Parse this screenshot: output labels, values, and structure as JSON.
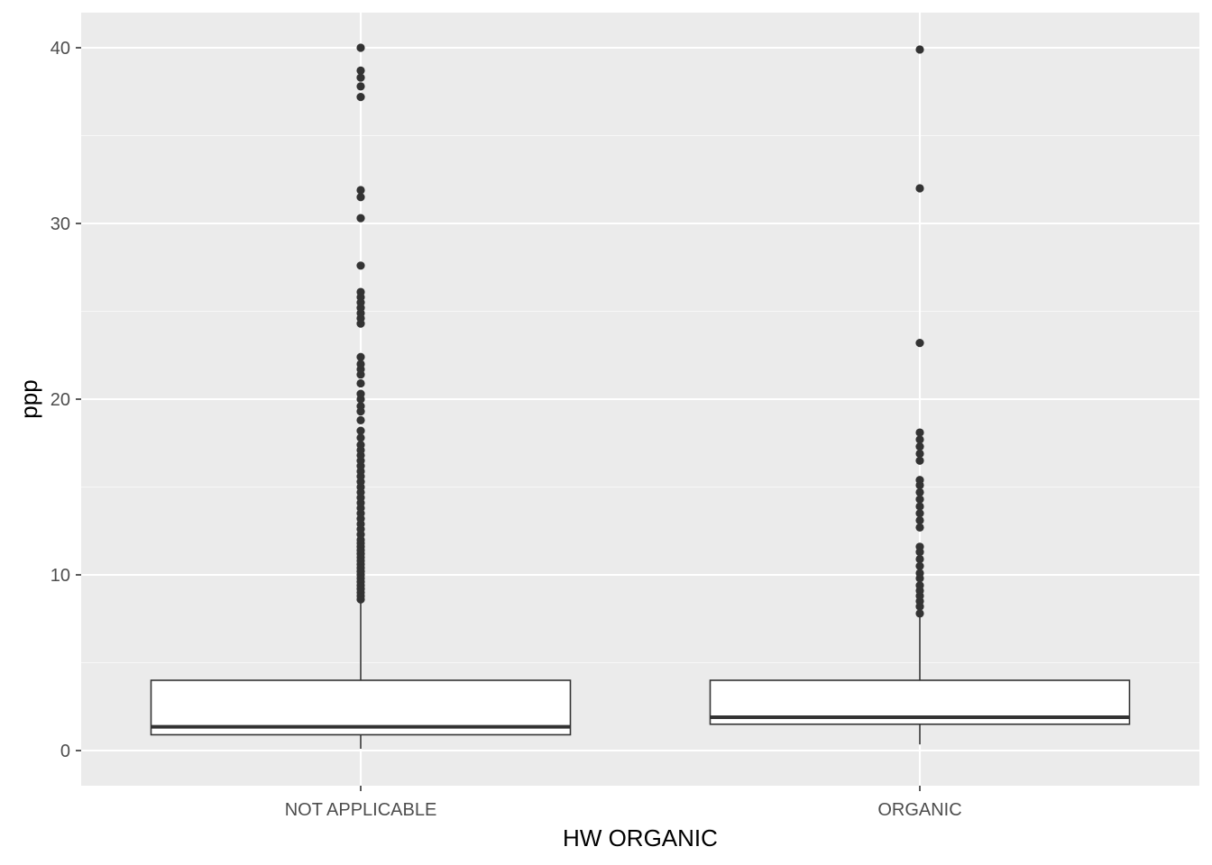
{
  "chart_data": {
    "type": "box",
    "title": "",
    "xlabel": "HW ORGANIC",
    "ylabel": "ppp",
    "ylim": [
      -2,
      42
    ],
    "y_ticks": [
      0,
      10,
      20,
      30,
      40
    ],
    "y_tick_labels": [
      "0",
      "10",
      "20",
      "30",
      "40"
    ],
    "grid": true,
    "legend": "none",
    "categories": [
      "NOT APPLICABLE",
      "ORGANIC"
    ],
    "boxes": [
      {
        "category": "NOT APPLICABLE",
        "whisker_low": 0.1,
        "q1": 0.9,
        "median": 1.35,
        "q3": 4.0,
        "whisker_high": 8.5,
        "outliers": [
          8.6,
          8.8,
          9.0,
          9.2,
          9.4,
          9.6,
          9.8,
          10.0,
          10.2,
          10.4,
          10.6,
          10.8,
          11.0,
          11.2,
          11.4,
          11.6,
          11.8,
          12.0,
          12.3,
          12.6,
          12.9,
          13.2,
          13.5,
          13.8,
          14.1,
          14.4,
          14.7,
          15.0,
          15.3,
          15.6,
          15.9,
          16.2,
          16.5,
          16.8,
          17.1,
          17.4,
          17.8,
          18.2,
          18.8,
          19.3,
          19.6,
          20.0,
          20.3,
          20.9,
          21.4,
          21.7,
          22.0,
          22.4,
          24.3,
          24.6,
          24.9,
          25.2,
          25.5,
          25.8,
          26.1,
          27.6,
          30.3,
          31.5,
          31.9,
          37.2,
          37.8,
          38.3,
          38.7,
          40.0
        ],
        "fill": "#ffffff",
        "stroke": "#333333"
      },
      {
        "category": "ORGANIC",
        "whisker_low": 0.35,
        "q1": 1.5,
        "median": 1.9,
        "q3": 4.0,
        "whisker_high": 7.8,
        "outliers": [
          7.8,
          8.2,
          8.5,
          8.8,
          9.1,
          9.4,
          9.8,
          10.1,
          10.5,
          10.9,
          11.3,
          11.6,
          12.7,
          13.1,
          13.5,
          13.9,
          14.3,
          14.7,
          15.1,
          15.4,
          16.5,
          16.9,
          17.3,
          17.7,
          18.1,
          23.2,
          32.0,
          39.9
        ],
        "fill": "#ffffff",
        "stroke": "#333333"
      }
    ],
    "colors": {
      "panel_background": "#ebebeb",
      "grid_major": "#ffffff",
      "grid_minor": "#f7f7f7",
      "point": "#333333",
      "tick_text": "#4d4d4d",
      "title_text": "#000000"
    }
  }
}
